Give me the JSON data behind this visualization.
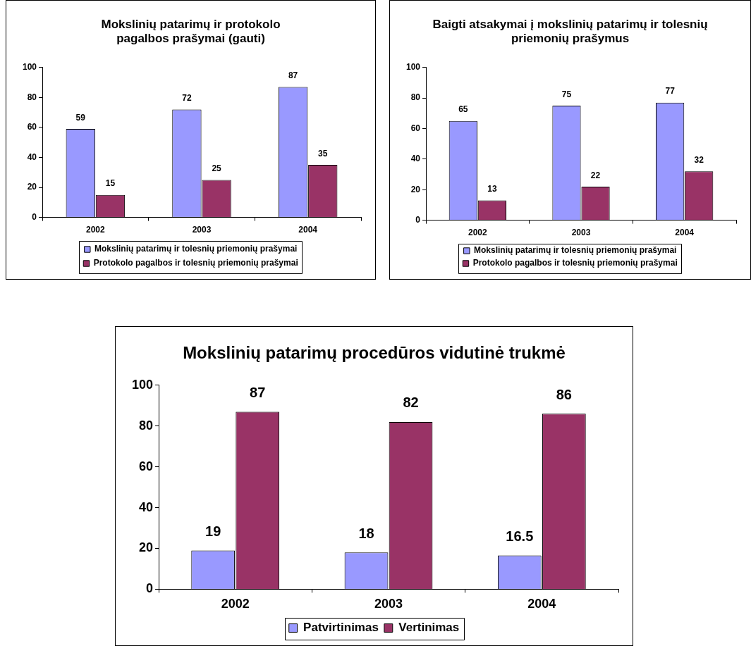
{
  "chart_data": [
    {
      "type": "bar",
      "title": "Mokslinių patarimų ir protokolo pagalbos prašymai (gauti)",
      "categories": [
        "2002",
        "2003",
        "2004"
      ],
      "series": [
        {
          "name": "Mokslinių patarimų ir tolesnių priemonių prašymai",
          "color": "#9999ff",
          "values": [
            59,
            72,
            87
          ]
        },
        {
          "name": "Protokolo pagalbos ir tolesnių priemonių prašymai",
          "color": "#993366",
          "values": [
            15,
            25,
            35
          ]
        }
      ],
      "ylim": [
        0,
        100
      ],
      "yticks": [
        0,
        20,
        40,
        60,
        80,
        100
      ],
      "data_labels": true,
      "legend": "bottom",
      "grid": false
    },
    {
      "type": "bar",
      "title": "Baigti atsakymai į mokslinių patarimų ir tolesnių priemonių prašymus",
      "categories": [
        "2002",
        "2003",
        "2004"
      ],
      "series": [
        {
          "name": "Mokslinių patarimų ir tolesnių priemonių prašymai",
          "color": "#9999ff",
          "values": [
            65,
            75,
            77
          ]
        },
        {
          "name": "Protokolo pagalbos ir tolesnių priemonių prašymai",
          "color": "#993366",
          "values": [
            13,
            22,
            32
          ]
        }
      ],
      "ylim": [
        0,
        100
      ],
      "yticks": [
        0,
        20,
        40,
        60,
        80,
        100
      ],
      "data_labels": true,
      "legend": "bottom",
      "grid": false
    },
    {
      "type": "bar",
      "title": "Mokslinių patarimų procedūros vidutinė trukmė",
      "categories": [
        "2002",
        "2003",
        "2004"
      ],
      "series": [
        {
          "name": "Patvirtinimas",
          "color": "#9999ff",
          "values": [
            19,
            18,
            16.5
          ]
        },
        {
          "name": "Vertinimas",
          "color": "#993366",
          "values": [
            87,
            82,
            86
          ]
        }
      ],
      "ylim": [
        0,
        100
      ],
      "yticks": [
        0,
        20,
        40,
        60,
        80,
        100
      ],
      "data_labels": true,
      "legend": "bottom",
      "grid": false
    }
  ]
}
